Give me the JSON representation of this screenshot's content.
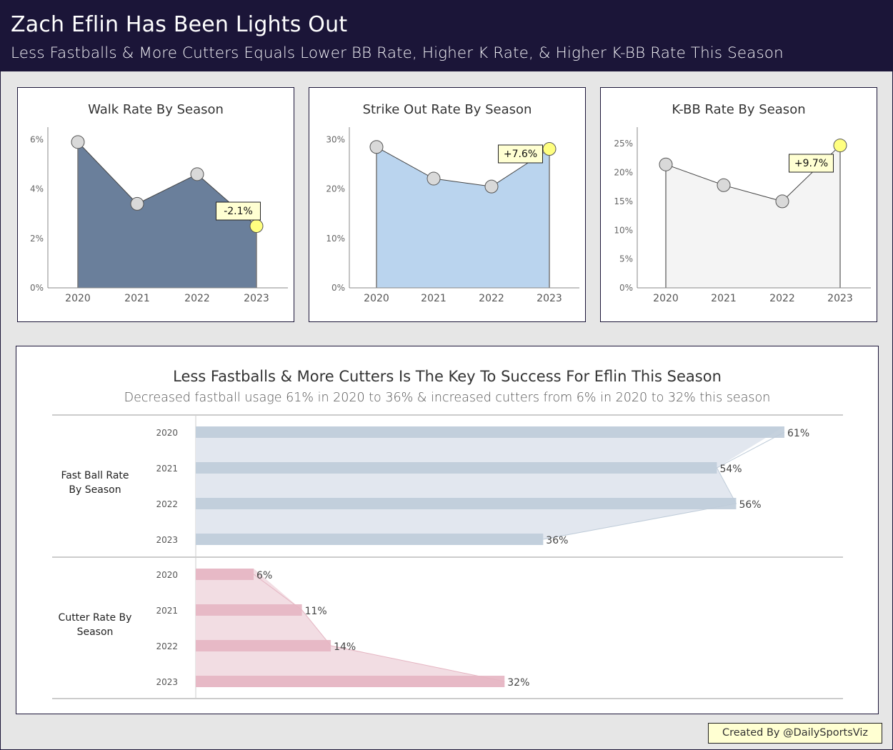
{
  "header": {
    "title": "Zach Eflin Has Been Lights Out",
    "subtitle": "Less Fastballs & More Cutters Equals Lower BB Rate, Higher K Rate, & Higher K-BB Rate This Season"
  },
  "chart_data": [
    {
      "type": "area",
      "title": "Walk Rate By Season",
      "categories": [
        "2020",
        "2021",
        "2022",
        "2023"
      ],
      "values": [
        5.9,
        3.4,
        4.6,
        2.5
      ],
      "ylim": [
        0,
        6.3
      ],
      "yticks": [
        0,
        2,
        4,
        6
      ],
      "ytick_labels": [
        "0%",
        "2%",
        "4%",
        "6%"
      ],
      "annotation": "-2.1%",
      "highlight_index": 3,
      "fill": "#6a7f9b",
      "xlabel": "",
      "ylabel": ""
    },
    {
      "type": "area",
      "title": "Strike Out Rate By Season",
      "categories": [
        "2020",
        "2021",
        "2022",
        "2023"
      ],
      "values": [
        28.5,
        22.1,
        20.5,
        28.1
      ],
      "ylim": [
        0,
        31.5
      ],
      "yticks": [
        0,
        10,
        20,
        30
      ],
      "ytick_labels": [
        "0%",
        "10%",
        "20%",
        "30%"
      ],
      "annotation": "+7.6%",
      "highlight_index": 3,
      "fill": "#bad4ee",
      "xlabel": "",
      "ylabel": ""
    },
    {
      "type": "area",
      "title": "K-BB Rate By Season",
      "categories": [
        "2020",
        "2021",
        "2022",
        "2023"
      ],
      "values": [
        21.4,
        17.8,
        15.0,
        24.7
      ],
      "ylim": [
        0,
        27
      ],
      "yticks": [
        0,
        5,
        10,
        15,
        20,
        25
      ],
      "ytick_labels": [
        "0%",
        "5%",
        "10%",
        "15%",
        "20%",
        "25%"
      ],
      "annotation": "+9.7%",
      "highlight_index": 3,
      "fill": "#f4f4f4",
      "xlabel": "",
      "ylabel": ""
    },
    {
      "type": "bar",
      "orientation": "horizontal",
      "title": "Less Fastballs & More Cutters Is The Key To Success For Eflin This Season",
      "subtitle": "Decreased fastball usage 61% in 2020 to 36% & increased cutters from 6% in 2020 to 32% this season",
      "xlim": [
        0,
        64
      ],
      "groups": [
        {
          "name": "Fast Ball Rate By Season",
          "color": "#bfccd9",
          "area_color": "#e2e7ef",
          "categories": [
            "2020",
            "2021",
            "2022",
            "2023"
          ],
          "values": [
            61,
            54,
            56,
            36
          ],
          "labels": [
            "61%",
            "54%",
            "56%",
            "36%"
          ]
        },
        {
          "name": "Cutter Rate By Season",
          "color": "#e5b5c2",
          "area_color": "#f2dde3",
          "categories": [
            "2020",
            "2021",
            "2022",
            "2023"
          ],
          "values": [
            6,
            11,
            14,
            32
          ],
          "labels": [
            "6%",
            "11%",
            "14%",
            "32%"
          ]
        }
      ]
    }
  ],
  "highlight_color": "#ffff80",
  "point_color": "#d9d9d9",
  "credit": "Created By @DailySportsViz"
}
